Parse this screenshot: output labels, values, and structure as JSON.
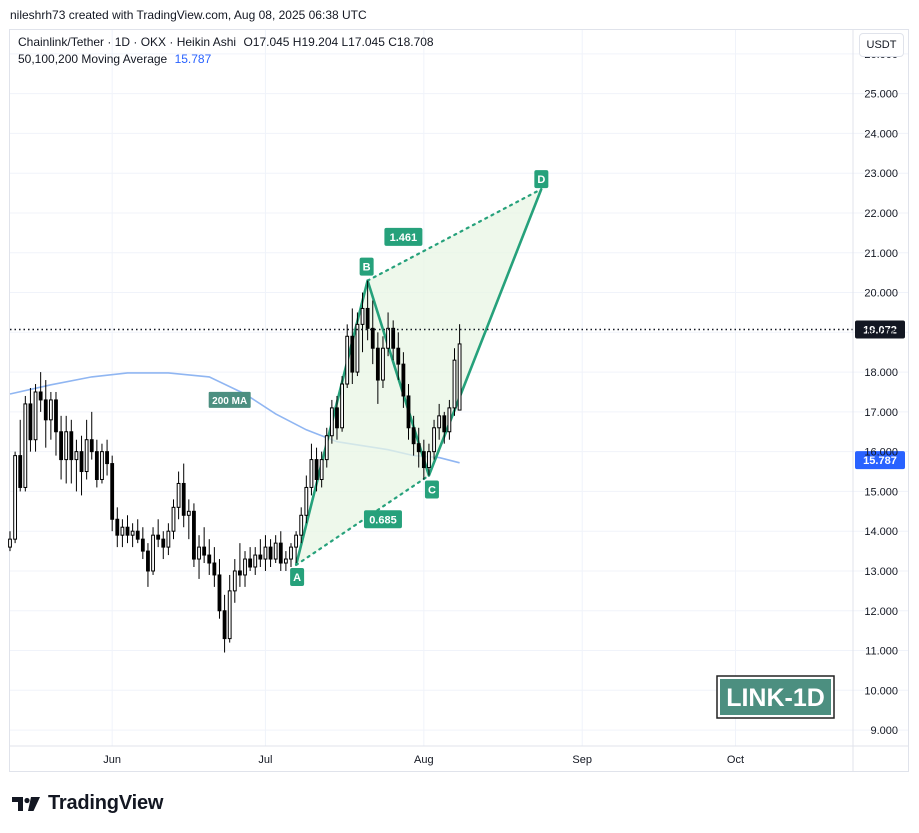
{
  "header": {
    "created_by": "nileshrh73 created with TradingView.com, Aug 08, 2025 06:38 UTC"
  },
  "legend": {
    "symbol": "Chainlink/Tether · 1D · OKX · Heikin Ashi",
    "ohlc": "O17.045  H19.204  L17.045  C18.708",
    "ma_label": "50,100,200 Moving Average",
    "ma_value": "15.787"
  },
  "currency_button": "USDT",
  "badge": "LINK-1D",
  "brand": "TradingView",
  "colors": {
    "up": "#ffffff",
    "down": "#000000",
    "pattern": "#26a17b",
    "pattern_fill": "#e8f5e4",
    "ma": "#90b6f2",
    "price_tag": "#131722",
    "ma_tag": "#2962ff",
    "badge_bg": "#4c8f80"
  },
  "chart_data": {
    "type": "candlestick",
    "title": "Chainlink/Tether · 1D · OKX · Heikin Ashi",
    "x_axis": {
      "ticks": [
        "Jun",
        "Jul",
        "Aug",
        "Sep",
        "Oct"
      ],
      "tick_dates": [
        "2025-06-01",
        "2025-07-01",
        "2025-08-01",
        "2025-09-01",
        "2025-10-01"
      ],
      "range": [
        "2025-05-12",
        "2025-10-24"
      ]
    },
    "y_axis": {
      "ticks": [
        "26.000",
        "25.000",
        "24.000",
        "23.000",
        "22.000",
        "21.000",
        "20.000",
        "19.000",
        "18.000",
        "17.000",
        "16.000",
        "15.000",
        "14.000",
        "13.000",
        "12.000",
        "11.000",
        "10.000",
        "9.000"
      ],
      "range": [
        8.6,
        26.6
      ]
    },
    "price_line": {
      "value": 19.072,
      "label": "19.072"
    },
    "ma_tag": {
      "value": 15.787,
      "label": "15.787"
    },
    "ma200": {
      "label": "200 MA",
      "label_at": [
        "2025-06-24",
        17.3
      ],
      "points": [
        [
          "2025-05-12",
          17.45
        ],
        [
          "2025-05-20",
          17.68
        ],
        [
          "2025-05-28",
          17.88
        ],
        [
          "2025-06-04",
          17.98
        ],
        [
          "2025-06-12",
          17.98
        ],
        [
          "2025-06-20",
          17.88
        ],
        [
          "2025-06-27",
          17.45
        ],
        [
          "2025-07-03",
          16.95
        ],
        [
          "2025-07-09",
          16.55
        ],
        [
          "2025-07-15",
          16.25
        ],
        [
          "2025-07-20",
          16.15
        ],
        [
          "2025-07-25",
          16.05
        ],
        [
          "2025-07-30",
          15.9
        ],
        [
          "2025-08-04",
          15.85
        ],
        [
          "2025-08-08",
          15.72
        ]
      ]
    },
    "pattern": {
      "A": {
        "label": "A",
        "date": "2025-07-07",
        "price": 13.15
      },
      "B": {
        "label": "B",
        "date": "2025-07-21",
        "price": 20.3
      },
      "C": {
        "label": "C",
        "date": "2025-08-02",
        "price": 15.4
      },
      "D": {
        "label": "D",
        "date": "2025-08-24",
        "price": 22.6
      },
      "ratio_ac": {
        "label": "0.685",
        "date": "2025-07-24",
        "price": 14.3
      },
      "ratio_bd": {
        "label": "1.461",
        "date": "2025-07-28",
        "price": 21.4
      }
    },
    "candles": [
      {
        "d": "2025-05-12",
        "o": 13.6,
        "h": 14.0,
        "l": 13.5,
        "c": 13.8
      },
      {
        "d": "2025-05-13",
        "o": 13.8,
        "h": 16.0,
        "l": 13.7,
        "c": 15.9
      },
      {
        "d": "2025-05-14",
        "o": 15.9,
        "h": 16.8,
        "l": 15.0,
        "c": 15.1
      },
      {
        "d": "2025-05-15",
        "o": 15.1,
        "h": 17.4,
        "l": 15.0,
        "c": 17.2
      },
      {
        "d": "2025-05-16",
        "o": 17.2,
        "h": 17.6,
        "l": 16.0,
        "c": 16.3
      },
      {
        "d": "2025-05-17",
        "o": 16.3,
        "h": 17.7,
        "l": 16.0,
        "c": 17.5
      },
      {
        "d": "2025-05-18",
        "o": 17.5,
        "h": 18.0,
        "l": 17.0,
        "c": 17.3
      },
      {
        "d": "2025-05-19",
        "o": 17.3,
        "h": 17.8,
        "l": 16.1,
        "c": 16.8
      },
      {
        "d": "2025-05-20",
        "o": 16.8,
        "h": 17.5,
        "l": 16.3,
        "c": 17.3
      },
      {
        "d": "2025-05-21",
        "o": 17.3,
        "h": 17.5,
        "l": 15.9,
        "c": 16.5
      },
      {
        "d": "2025-05-22",
        "o": 16.5,
        "h": 16.9,
        "l": 15.3,
        "c": 15.8
      },
      {
        "d": "2025-05-23",
        "o": 15.8,
        "h": 16.9,
        "l": 15.2,
        "c": 16.5
      },
      {
        "d": "2025-05-24",
        "o": 16.5,
        "h": 16.8,
        "l": 15.2,
        "c": 15.8
      },
      {
        "d": "2025-05-25",
        "o": 15.8,
        "h": 16.3,
        "l": 15.0,
        "c": 16.0
      },
      {
        "d": "2025-05-26",
        "o": 16.0,
        "h": 16.4,
        "l": 14.9,
        "c": 15.5
      },
      {
        "d": "2025-05-27",
        "o": 15.5,
        "h": 16.8,
        "l": 15.3,
        "c": 16.3
      },
      {
        "d": "2025-05-28",
        "o": 16.3,
        "h": 17.0,
        "l": 15.8,
        "c": 16.0
      },
      {
        "d": "2025-05-29",
        "o": 16.0,
        "h": 16.3,
        "l": 15.1,
        "c": 15.3
      },
      {
        "d": "2025-05-30",
        "o": 15.3,
        "h": 16.2,
        "l": 15.2,
        "c": 16.0
      },
      {
        "d": "2025-05-31",
        "o": 16.0,
        "h": 16.3,
        "l": 15.4,
        "c": 15.7
      },
      {
        "d": "2025-06-01",
        "o": 15.7,
        "h": 15.9,
        "l": 14.0,
        "c": 14.3
      },
      {
        "d": "2025-06-02",
        "o": 14.3,
        "h": 14.6,
        "l": 13.6,
        "c": 13.9
      },
      {
        "d": "2025-06-03",
        "o": 13.9,
        "h": 14.3,
        "l": 13.6,
        "c": 14.1
      },
      {
        "d": "2025-06-04",
        "o": 14.1,
        "h": 14.4,
        "l": 13.7,
        "c": 13.9
      },
      {
        "d": "2025-06-05",
        "o": 13.9,
        "h": 14.2,
        "l": 13.6,
        "c": 14.0
      },
      {
        "d": "2025-06-06",
        "o": 14.0,
        "h": 14.3,
        "l": 13.7,
        "c": 13.8
      },
      {
        "d": "2025-06-07",
        "o": 13.8,
        "h": 14.1,
        "l": 13.3,
        "c": 13.5
      },
      {
        "d": "2025-06-08",
        "o": 13.5,
        "h": 13.7,
        "l": 12.6,
        "c": 13.0
      },
      {
        "d": "2025-06-09",
        "o": 13.0,
        "h": 14.1,
        "l": 12.9,
        "c": 13.9
      },
      {
        "d": "2025-06-10",
        "o": 13.9,
        "h": 14.3,
        "l": 13.6,
        "c": 13.8
      },
      {
        "d": "2025-06-11",
        "o": 13.8,
        "h": 14.0,
        "l": 13.3,
        "c": 13.6
      },
      {
        "d": "2025-06-12",
        "o": 13.6,
        "h": 14.2,
        "l": 13.4,
        "c": 14.0
      },
      {
        "d": "2025-06-13",
        "o": 14.0,
        "h": 14.8,
        "l": 13.8,
        "c": 14.6
      },
      {
        "d": "2025-06-14",
        "o": 14.6,
        "h": 15.5,
        "l": 14.3,
        "c": 15.2
      },
      {
        "d": "2025-06-15",
        "o": 15.2,
        "h": 15.7,
        "l": 14.1,
        "c": 14.4
      },
      {
        "d": "2025-06-16",
        "o": 14.4,
        "h": 14.8,
        "l": 13.8,
        "c": 14.5
      },
      {
        "d": "2025-06-17",
        "o": 14.5,
        "h": 14.7,
        "l": 13.1,
        "c": 13.3
      },
      {
        "d": "2025-06-18",
        "o": 13.3,
        "h": 13.9,
        "l": 12.8,
        "c": 13.6
      },
      {
        "d": "2025-06-19",
        "o": 13.6,
        "h": 14.1,
        "l": 13.2,
        "c": 13.4
      },
      {
        "d": "2025-06-20",
        "o": 13.4,
        "h": 13.8,
        "l": 12.9,
        "c": 13.2
      },
      {
        "d": "2025-06-21",
        "o": 13.2,
        "h": 13.6,
        "l": 12.6,
        "c": 12.9
      },
      {
        "d": "2025-06-22",
        "o": 12.9,
        "h": 13.3,
        "l": 11.8,
        "c": 12.0
      },
      {
        "d": "2025-06-23",
        "o": 12.0,
        "h": 12.4,
        "l": 10.95,
        "c": 11.3
      },
      {
        "d": "2025-06-24",
        "o": 11.3,
        "h": 12.9,
        "l": 11.2,
        "c": 12.5
      },
      {
        "d": "2025-06-25",
        "o": 12.5,
        "h": 13.3,
        "l": 12.2,
        "c": 13.0
      },
      {
        "d": "2025-06-26",
        "o": 13.0,
        "h": 13.7,
        "l": 12.6,
        "c": 12.9
      },
      {
        "d": "2025-06-27",
        "o": 12.9,
        "h": 13.5,
        "l": 12.6,
        "c": 13.3
      },
      {
        "d": "2025-06-28",
        "o": 13.3,
        "h": 13.6,
        "l": 13.0,
        "c": 13.1
      },
      {
        "d": "2025-06-29",
        "o": 13.1,
        "h": 13.6,
        "l": 12.9,
        "c": 13.4
      },
      {
        "d": "2025-06-30",
        "o": 13.4,
        "h": 13.8,
        "l": 13.1,
        "c": 13.3
      },
      {
        "d": "2025-07-01",
        "o": 13.3,
        "h": 13.9,
        "l": 13.0,
        "c": 13.6
      },
      {
        "d": "2025-07-02",
        "o": 13.6,
        "h": 13.8,
        "l": 13.1,
        "c": 13.3
      },
      {
        "d": "2025-07-03",
        "o": 13.3,
        "h": 13.9,
        "l": 13.2,
        "c": 13.7
      },
      {
        "d": "2025-07-04",
        "o": 13.7,
        "h": 14.0,
        "l": 13.0,
        "c": 13.2
      },
      {
        "d": "2025-07-05",
        "o": 13.2,
        "h": 13.5,
        "l": 13.0,
        "c": 13.3
      },
      {
        "d": "2025-07-06",
        "o": 13.3,
        "h": 13.7,
        "l": 13.1,
        "c": 13.6
      },
      {
        "d": "2025-07-07",
        "o": 13.6,
        "h": 14.0,
        "l": 13.2,
        "c": 13.9
      },
      {
        "d": "2025-07-08",
        "o": 13.9,
        "h": 14.6,
        "l": 13.7,
        "c": 14.4
      },
      {
        "d": "2025-07-09",
        "o": 14.4,
        "h": 15.4,
        "l": 14.2,
        "c": 15.1
      },
      {
        "d": "2025-07-10",
        "o": 15.1,
        "h": 16.2,
        "l": 14.9,
        "c": 15.8
      },
      {
        "d": "2025-07-11",
        "o": 15.8,
        "h": 16.1,
        "l": 15.0,
        "c": 15.3
      },
      {
        "d": "2025-07-12",
        "o": 15.3,
        "h": 16.0,
        "l": 15.1,
        "c": 15.8
      },
      {
        "d": "2025-07-13",
        "o": 15.8,
        "h": 16.6,
        "l": 15.6,
        "c": 16.4
      },
      {
        "d": "2025-07-14",
        "o": 16.4,
        "h": 17.3,
        "l": 16.2,
        "c": 17.1
      },
      {
        "d": "2025-07-15",
        "o": 17.1,
        "h": 17.4,
        "l": 16.3,
        "c": 16.6
      },
      {
        "d": "2025-07-16",
        "o": 16.6,
        "h": 17.9,
        "l": 16.5,
        "c": 17.7
      },
      {
        "d": "2025-07-17",
        "o": 17.7,
        "h": 19.2,
        "l": 17.6,
        "c": 18.9
      },
      {
        "d": "2025-07-18",
        "o": 18.9,
        "h": 19.6,
        "l": 17.7,
        "c": 18.0
      },
      {
        "d": "2025-07-19",
        "o": 18.0,
        "h": 19.5,
        "l": 17.9,
        "c": 19.2
      },
      {
        "d": "2025-07-20",
        "o": 19.2,
        "h": 20.0,
        "l": 18.5,
        "c": 19.6
      },
      {
        "d": "2025-07-21",
        "o": 19.6,
        "h": 20.3,
        "l": 18.8,
        "c": 19.1
      },
      {
        "d": "2025-07-22",
        "o": 19.1,
        "h": 19.8,
        "l": 18.2,
        "c": 18.6
      },
      {
        "d": "2025-07-23",
        "o": 18.6,
        "h": 19.0,
        "l": 17.2,
        "c": 17.8
      },
      {
        "d": "2025-07-24",
        "o": 17.8,
        "h": 18.9,
        "l": 17.6,
        "c": 18.6
      },
      {
        "d": "2025-07-25",
        "o": 18.6,
        "h": 19.5,
        "l": 18.4,
        "c": 19.1
      },
      {
        "d": "2025-07-26",
        "o": 19.1,
        "h": 19.3,
        "l": 18.3,
        "c": 18.6
      },
      {
        "d": "2025-07-27",
        "o": 18.6,
        "h": 19.0,
        "l": 17.8,
        "c": 18.2
      },
      {
        "d": "2025-07-28",
        "o": 18.2,
        "h": 18.5,
        "l": 17.1,
        "c": 17.4
      },
      {
        "d": "2025-07-29",
        "o": 17.4,
        "h": 17.7,
        "l": 16.3,
        "c": 16.6
      },
      {
        "d": "2025-07-30",
        "o": 16.6,
        "h": 16.9,
        "l": 15.9,
        "c": 16.2
      },
      {
        "d": "2025-07-31",
        "o": 16.2,
        "h": 16.6,
        "l": 15.6,
        "c": 16.0
      },
      {
        "d": "2025-08-01",
        "o": 16.0,
        "h": 16.3,
        "l": 15.3,
        "c": 15.6
      },
      {
        "d": "2025-08-02",
        "o": 15.6,
        "h": 16.2,
        "l": 15.4,
        "c": 16.0
      },
      {
        "d": "2025-08-03",
        "o": 16.0,
        "h": 16.8,
        "l": 15.8,
        "c": 16.6
      },
      {
        "d": "2025-08-04",
        "o": 16.6,
        "h": 17.2,
        "l": 16.3,
        "c": 16.9
      },
      {
        "d": "2025-08-05",
        "o": 16.9,
        "h": 17.0,
        "l": 16.2,
        "c": 16.5
      },
      {
        "d": "2025-08-06",
        "o": 16.5,
        "h": 17.3,
        "l": 16.3,
        "c": 17.1
      },
      {
        "d": "2025-08-07",
        "o": 17.1,
        "h": 18.6,
        "l": 16.9,
        "c": 18.3
      },
      {
        "d": "2025-08-08",
        "o": 17.045,
        "h": 19.204,
        "l": 17.045,
        "c": 18.708
      }
    ]
  }
}
